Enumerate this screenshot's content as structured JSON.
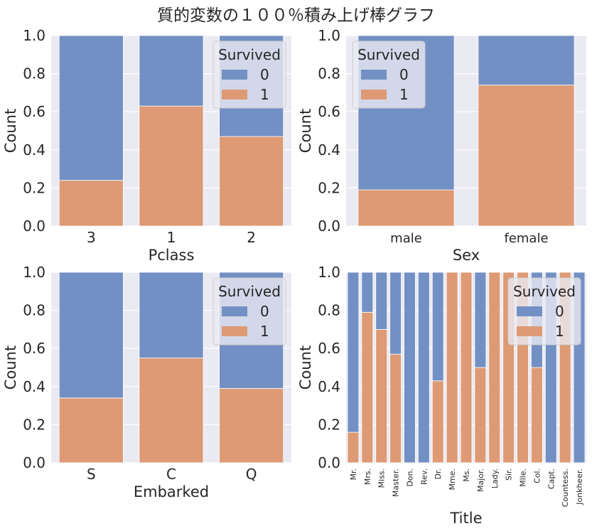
{
  "figure": {
    "title": "質的変数の１００％積み上げ棒グラフ"
  },
  "style": {
    "background": "#eaeaf2",
    "grid": "#ffffff",
    "color_0": "#7390c4",
    "color_1": "#dd9a74",
    "text": "#262626"
  },
  "chart_data": [
    {
      "type": "bar",
      "stacked": "100%",
      "xlabel": "Pclass",
      "ylabel": "Count",
      "ylim": [
        0,
        1
      ],
      "yticks": [
        "0.0",
        "0.2",
        "0.4",
        "0.6",
        "0.8",
        "1.0"
      ],
      "grid": true,
      "categories": [
        "3",
        "1",
        "2"
      ],
      "series": [
        {
          "name": "0",
          "values": [
            0.76,
            0.37,
            0.53
          ]
        },
        {
          "name": "1",
          "values": [
            0.24,
            0.63,
            0.47
          ]
        }
      ],
      "legend": {
        "title": "Survived",
        "position": "top-right"
      }
    },
    {
      "type": "bar",
      "stacked": "100%",
      "xlabel": "Sex",
      "ylabel": "Count",
      "ylim": [
        0,
        1
      ],
      "yticks": [
        "0.0",
        "0.2",
        "0.4",
        "0.6",
        "0.8",
        "1.0"
      ],
      "grid": true,
      "categories": [
        "male",
        "female"
      ],
      "series": [
        {
          "name": "0",
          "values": [
            0.81,
            0.26
          ]
        },
        {
          "name": "1",
          "values": [
            0.19,
            0.74
          ]
        }
      ],
      "legend": {
        "title": "Survived",
        "position": "top-left"
      }
    },
    {
      "type": "bar",
      "stacked": "100%",
      "xlabel": "Embarked",
      "ylabel": "Count",
      "ylim": [
        0,
        1
      ],
      "yticks": [
        "0.0",
        "0.2",
        "0.4",
        "0.6",
        "0.8",
        "1.0"
      ],
      "grid": true,
      "categories": [
        "S",
        "C",
        "Q"
      ],
      "series": [
        {
          "name": "0",
          "values": [
            0.66,
            0.45,
            0.61
          ]
        },
        {
          "name": "1",
          "values": [
            0.34,
            0.55,
            0.39
          ]
        }
      ],
      "legend": {
        "title": "Survived",
        "position": "top-right"
      }
    },
    {
      "type": "bar",
      "stacked": "100%",
      "xlabel": "Title",
      "ylabel": "Count",
      "ylim": [
        0,
        1
      ],
      "yticks": [
        "0.0",
        "0.2",
        "0.4",
        "0.6",
        "0.8",
        "1.0"
      ],
      "grid": true,
      "categories": [
        "Mr.",
        "Mrs.",
        "Miss.",
        "Master.",
        "Don.",
        "Rev.",
        "Dr.",
        "Mme.",
        "Ms.",
        "Major.",
        "Lady.",
        "Sir.",
        "Mlle.",
        "Col.",
        "Capt.",
        "Countess.",
        "Jonkheer."
      ],
      "series": [
        {
          "name": "0",
          "values": [
            0.84,
            0.21,
            0.3,
            0.43,
            1.0,
            1.0,
            0.57,
            0.0,
            0.0,
            0.5,
            0.0,
            0.0,
            0.0,
            0.5,
            1.0,
            0.0,
            1.0
          ]
        },
        {
          "name": "1",
          "values": [
            0.16,
            0.79,
            0.7,
            0.57,
            0.0,
            0.0,
            0.43,
            1.0,
            1.0,
            0.5,
            1.0,
            1.0,
            1.0,
            0.5,
            0.0,
            1.0,
            0.0
          ]
        }
      ],
      "legend": {
        "title": "Survived",
        "position": "top-right"
      }
    }
  ]
}
